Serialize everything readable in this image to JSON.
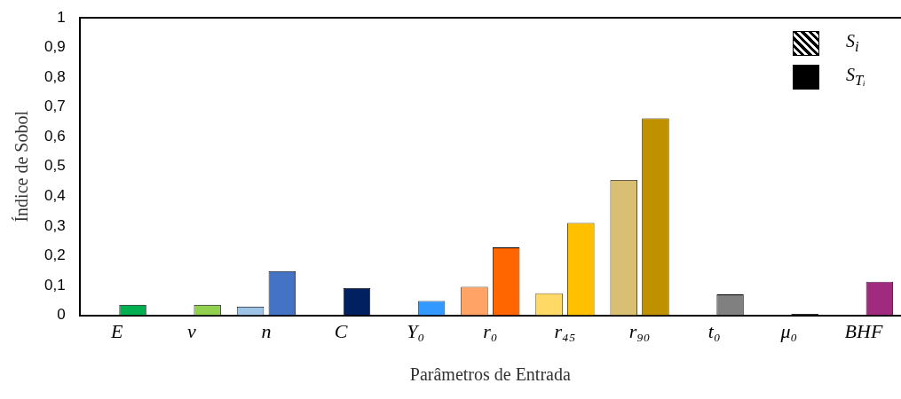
{
  "chart_data": {
    "type": "bar",
    "xlabel": "Parâmetros de Entrada",
    "ylabel": "Índice de Sobol",
    "categories": [
      "E",
      "ν",
      "n",
      "C",
      "Y₀",
      "r₀",
      "r₄₅",
      "r₉₀",
      "t₀",
      "μ₀",
      "BHF"
    ],
    "series": [
      {
        "name": "S$_{i}$",
        "colors": [
          "#cccccc",
          "#cccccc",
          "#9dc3e6",
          "#cccccc",
          "#cccccc",
          "#ffa366",
          "#ffd966",
          "#d9bf73",
          "#cccccc",
          "#cccccc",
          "#cccccc"
        ],
        "values": [
          null,
          null,
          0.029,
          null,
          null,
          0.096,
          0.074,
          0.455,
          null,
          null,
          null
        ]
      },
      {
        "name": "S$_{Tᵢ}$",
        "color": "#000000",
        "colors": [
          "#00b050",
          "#92d050",
          "#4472c4",
          "#002060",
          "#3399ff",
          "#ff6600",
          "#ffc000",
          "#bf9000",
          "#808080",
          "#000000",
          "#a02b7e"
        ],
        "values": [
          0.035,
          0.035,
          0.148,
          0.091,
          0.048,
          0.228,
          0.31,
          0.662,
          0.07,
          0.005,
          0.113
        ]
      }
    ],
    "ylim": [
      0,
      1
    ],
    "yticks": [
      0,
      {
        "value": 0.1,
        "label": "0,1"
      },
      {
        "value": 0.2,
        "label": "0,2"
      },
      {
        "value": 0.3,
        "label": "0,3"
      },
      {
        "value": 0.4,
        "label": "0,4"
      },
      {
        "value": 0.5,
        "label": "0,5"
      },
      {
        "value": 0.6,
        "label": "0,6"
      },
      {
        "value": 0.7,
        "label": "0,7"
      },
      {
        "value": 0.8,
        "label": "0,8"
      },
      {
        "value": 0.9,
        "label": "0,9"
      },
      1
    ],
    "legend": "top right",
    "grid": false
  }
}
